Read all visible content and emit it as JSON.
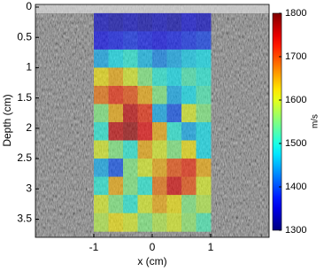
{
  "chart_data": {
    "type": "heatmap",
    "colormap": "jet",
    "xlabel": "x (cm)",
    "ylabel": "Depth (cm)",
    "colorbar_label": "m/s",
    "xlim": [
      -2,
      2
    ],
    "xticks": [
      -1,
      0,
      1
    ],
    "ylim": [
      3.8,
      0
    ],
    "yticks": [
      0,
      0.5,
      1,
      1.5,
      2,
      2.5,
      3,
      3.5
    ],
    "clim": [
      1300,
      1800
    ],
    "cticks": [
      1300,
      1400,
      1500,
      1600,
      1700,
      1800
    ],
    "x": [
      -0.875,
      -0.625,
      -0.375,
      -0.125,
      0.125,
      0.375,
      0.625,
      0.875
    ],
    "y": [
      0.25,
      0.55,
      0.85,
      1.15,
      1.45,
      1.75,
      2.05,
      2.35,
      2.65,
      2.95,
      3.25,
      3.55
    ],
    "z": [
      [
        1340,
        1330,
        1340,
        1330,
        1340,
        1330,
        1350,
        1340
      ],
      [
        1360,
        1370,
        1380,
        1370,
        1360,
        1370,
        1380,
        1390
      ],
      [
        1450,
        1480,
        1500,
        1460,
        1430,
        1450,
        1470,
        1480
      ],
      [
        1620,
        1650,
        1600,
        1550,
        1500,
        1480,
        1520,
        1500
      ],
      [
        1680,
        1720,
        1700,
        1650,
        1550,
        1450,
        1480,
        1520
      ],
      [
        1550,
        1650,
        1760,
        1720,
        1450,
        1400,
        1600,
        1550
      ],
      [
        1500,
        1760,
        1780,
        1740,
        1650,
        1500,
        1450,
        1480
      ],
      [
        1600,
        1550,
        1500,
        1650,
        1600,
        1550,
        1620,
        1480
      ],
      [
        1450,
        1400,
        1550,
        1600,
        1650,
        1700,
        1720,
        1650
      ],
      [
        1500,
        1650,
        1550,
        1500,
        1680,
        1750,
        1700,
        1600
      ],
      [
        1600,
        1550,
        1500,
        1600,
        1650,
        1620,
        1550,
        1580
      ],
      [
        1580,
        1620,
        1600,
        1550,
        1580,
        1600,
        1560,
        1520
      ]
    ]
  }
}
